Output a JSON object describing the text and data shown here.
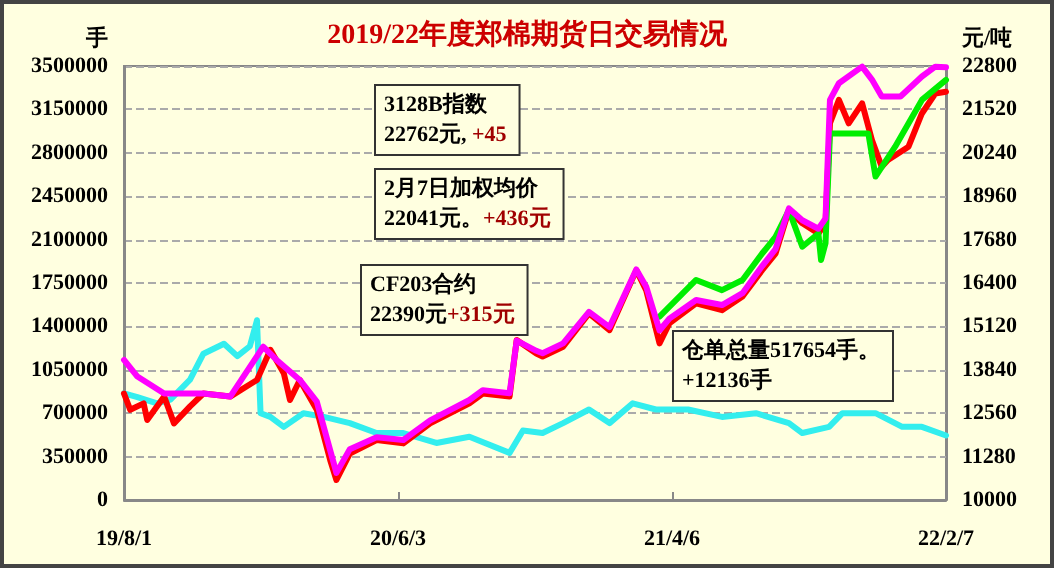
{
  "chart_data": {
    "type": "line",
    "title": "2019/22年度郑棉期货日交易情况",
    "ylabel": "手",
    "y2label": "元/吨",
    "xlim": [
      "2019-08-01",
      "2022-02-07"
    ],
    "xticks": [
      {
        "value": "2019-08-01",
        "label": "19/8/1"
      },
      {
        "value": "2020-06-03",
        "label": "20/6/3"
      },
      {
        "value": "2021-04-06",
        "label": "21/4/6"
      },
      {
        "value": "2022-02-07",
        "label": "22/2/7"
      }
    ],
    "ylim": [
      0,
      3500000
    ],
    "yticks": [
      0,
      350000,
      700000,
      1050000,
      1400000,
      1750000,
      2100000,
      2450000,
      2800000,
      3150000,
      3500000
    ],
    "y2lim": [
      10000,
      22800
    ],
    "y2ticks": [
      10000,
      11280,
      12560,
      13840,
      15120,
      16400,
      17680,
      18960,
      20240,
      21520,
      22800
    ],
    "grid": "y",
    "marker": "none",
    "line_style": "solid",
    "annotations": [
      "3128B指数\n22762元, +45",
      "2月7日加权均价\n22041元。+436元",
      "CF203合约\n22390元+315元",
      "仓单总量517654手。\n+12136手"
    ],
    "series": [
      {
        "color": "#33eeee",
        "x": [
          "2019-08-01",
          "2019-08-16",
          "2019-09-07",
          "2019-09-22",
          "2019-10-14",
          "2019-10-29",
          "2019-11-21",
          "2019-12-06",
          "2019-12-20",
          "2019-12-28",
          "2020-01-01",
          "2020-01-12",
          "2020-01-27",
          "2020-02-18",
          "2020-03-12",
          "2020-04-10",
          "2020-05-10",
          "2020-06-09",
          "2020-07-16",
          "2020-08-22",
          "2020-10-06",
          "2020-10-21",
          "2020-11-12",
          "2020-12-05",
          "2021-01-03",
          "2021-01-26",
          "2021-02-21",
          "2021-03-19",
          "2021-04-24",
          "2021-06-01",
          "2021-07-09",
          "2021-08-15",
          "2021-08-30",
          "2021-09-29",
          "2021-10-14",
          "2021-11-20",
          "2021-12-20",
          "2022-01-11",
          "2022-02-07"
        ],
        "values": [
          860000,
          830000,
          780000,
          810000,
          970000,
          1180000,
          1260000,
          1160000,
          1240000,
          1450000,
          700000,
          670000,
          590000,
          700000,
          670000,
          620000,
          540000,
          540000,
          460000,
          510000,
          380000,
          560000,
          540000,
          620000,
          730000,
          620000,
          780000,
          730000,
          730000,
          670000,
          700000,
          620000,
          540000,
          590000,
          700000,
          700000,
          590000,
          590000,
          520000
        ]
      },
      {
        "color": "#ff0000",
        "axis": "y2",
        "x": [
          "2019-08-01",
          "2019-08-08",
          "2019-08-23",
          "2019-08-27",
          "2019-09-15",
          "2019-09-26",
          "2019-10-14",
          "2019-10-29",
          "2019-11-28",
          "2019-12-28",
          "2020-01-12",
          "2020-01-27",
          "2020-02-03",
          "2020-02-14",
          "2020-03-04",
          "2020-03-19",
          "2020-03-26",
          "2020-04-10",
          "2020-05-10",
          "2020-06-09",
          "2020-07-09",
          "2020-08-22",
          "2020-09-06",
          "2020-10-06",
          "2020-10-14",
          "2020-11-05",
          "2020-11-12",
          "2020-12-05",
          "2021-01-03",
          "2021-01-26",
          "2021-02-25",
          "2021-03-08",
          "2021-03-23",
          "2021-04-03",
          "2021-05-03",
          "2021-06-01",
          "2021-06-24",
          "2021-07-16",
          "2021-07-31",
          "2021-08-15",
          "2021-08-30",
          "2021-09-17",
          "2021-09-25",
          "2021-09-30",
          "2021-10-10",
          "2021-10-21",
          "2021-11-05",
          "2021-11-16",
          "2021-11-27",
          "2021-12-04",
          "2021-12-27",
          "2022-01-11",
          "2022-01-26",
          "2022-02-07"
        ],
        "values": [
          13140,
          12660,
          12850,
          12360,
          13050,
          12260,
          12760,
          13140,
          13050,
          13540,
          14430,
          13740,
          12950,
          13540,
          12660,
          11180,
          10590,
          11370,
          11770,
          11670,
          12260,
          12850,
          13140,
          13050,
          14720,
          14320,
          14230,
          14520,
          15500,
          15010,
          16780,
          16190,
          14620,
          15210,
          15800,
          15600,
          16000,
          16780,
          17270,
          18550,
          18160,
          17860,
          18160,
          21110,
          21800,
          21110,
          21700,
          20620,
          19830,
          20030,
          20420,
          21400,
          21990,
          22040
        ]
      },
      {
        "color": "#00ee00",
        "axis": "y2",
        "x": [
          "2021-03-23",
          "2021-05-03",
          "2021-06-01",
          "2021-06-24",
          "2021-07-16",
          "2021-07-31",
          "2021-08-15",
          "2021-08-30",
          "2021-09-17",
          "2021-09-20",
          "2021-09-25",
          "2021-09-30",
          "2021-10-21",
          "2021-11-12",
          "2021-11-20",
          "2021-12-12",
          "2022-01-11",
          "2022-02-07"
        ],
        "values": [
          15410,
          16490,
          16190,
          16490,
          17270,
          17760,
          18550,
          17470,
          17860,
          17080,
          17570,
          20810,
          20810,
          20810,
          19540,
          20420,
          21800,
          22390
        ]
      },
      {
        "color": "#ff00ff",
        "axis": "y2",
        "x": [
          "2019-08-01",
          "2019-08-16",
          "2019-09-15",
          "2019-10-29",
          "2019-11-28",
          "2020-01-04",
          "2020-01-19",
          "2020-02-14",
          "2020-03-04",
          "2020-03-26",
          "2020-04-10",
          "2020-05-10",
          "2020-06-09",
          "2020-07-09",
          "2020-08-22",
          "2020-09-06",
          "2020-10-06",
          "2020-10-14",
          "2020-11-05",
          "2020-11-12",
          "2020-12-05",
          "2021-01-03",
          "2021-01-26",
          "2021-02-25",
          "2021-03-08",
          "2021-03-23",
          "2021-04-03",
          "2021-05-03",
          "2021-06-01",
          "2021-06-24",
          "2021-07-16",
          "2021-07-31",
          "2021-08-15",
          "2021-08-30",
          "2021-09-17",
          "2021-09-25",
          "2021-09-30",
          "2021-10-10",
          "2021-11-05",
          "2021-11-16",
          "2021-11-27",
          "2021-12-18",
          "2022-01-11",
          "2022-01-26",
          "2022-02-07"
        ],
        "values": [
          14130,
          13640,
          13140,
          13140,
          13050,
          14520,
          14130,
          13540,
          12900,
          10800,
          11500,
          11850,
          11770,
          12350,
          12950,
          13240,
          13150,
          14700,
          14400,
          14330,
          14620,
          15550,
          15100,
          16800,
          16300,
          15000,
          15350,
          15900,
          15750,
          16100,
          16900,
          17400,
          18600,
          18250,
          18000,
          18300,
          21800,
          22290,
          22780,
          22400,
          21900,
          21900,
          22490,
          22780,
          22760
        ]
      }
    ]
  }
}
